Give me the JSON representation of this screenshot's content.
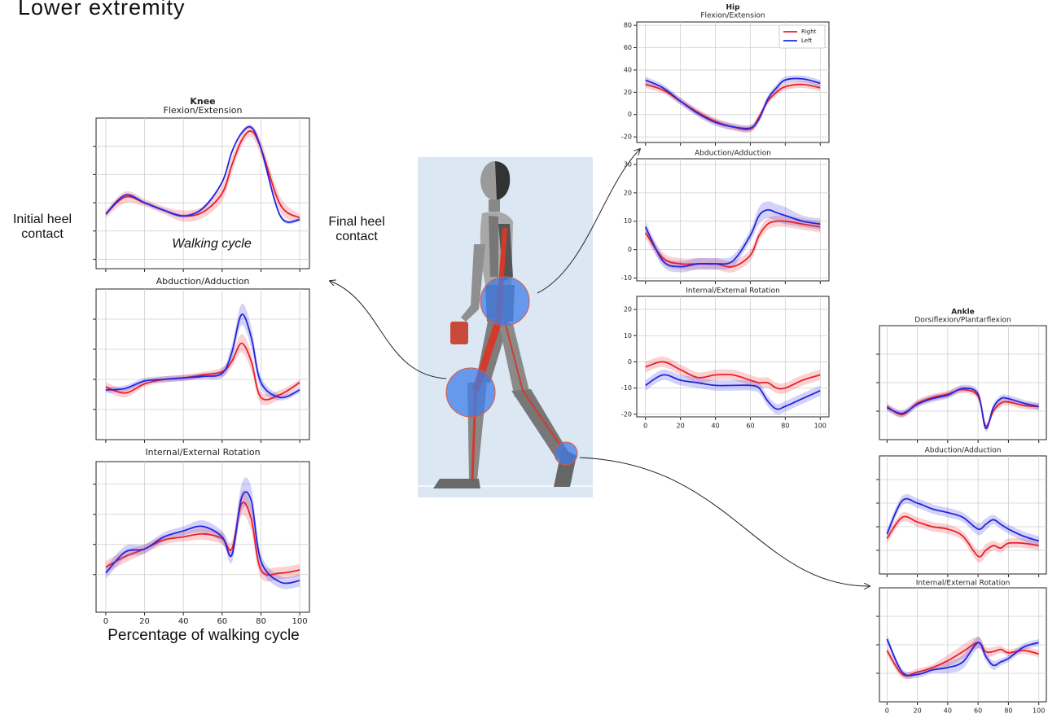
{
  "figure_title": "Lower extremity",
  "annotations": {
    "initial": "Initial heel contact",
    "cycle": "Walking cycle",
    "final": "Final heel contact",
    "xlabel": "Percentage of walking cycle"
  },
  "chart_data": [
    {
      "type": "line",
      "title": "Knee",
      "subtitle": "Flexion/Extension",
      "x": [
        0,
        10,
        20,
        30,
        40,
        50,
        60,
        65,
        70,
        75,
        80,
        90,
        100
      ],
      "xlim": [
        -5,
        105
      ],
      "xticks": [
        0,
        20,
        40,
        60,
        80,
        100
      ],
      "show_xtick_labels": false,
      "ylim": [
        0,
        80
      ],
      "yticks": [
        5,
        20,
        35,
        50,
        65
      ],
      "show_ytick_labels": false,
      "grid": true,
      "series": [
        {
          "color": "#e8202a",
          "values": [
            29,
            38,
            35,
            31,
            28,
            30,
            40,
            55,
            68,
            73,
            64,
            34,
            27
          ],
          "errors": [
            2,
            3,
            2,
            2,
            3,
            3,
            4,
            4,
            3,
            3,
            4,
            4,
            2
          ]
        },
        {
          "color": "#2424e0",
          "values": [
            29,
            39,
            35,
            31,
            28,
            32,
            46,
            62,
            72,
            75,
            64,
            28,
            26
          ],
          "errors": [
            1,
            1,
            1,
            1,
            1,
            1,
            1,
            1,
            1,
            1,
            1,
            1,
            1
          ]
        }
      ]
    },
    {
      "type": "line",
      "title": "Abduction/Adduction",
      "x": [
        0,
        10,
        20,
        30,
        40,
        50,
        60,
        65,
        70,
        75,
        80,
        90,
        100
      ],
      "xlim": [
        -5,
        105
      ],
      "xticks": [
        0,
        20,
        40,
        60,
        80,
        100
      ],
      "show_xtick_labels": false,
      "ylim": [
        0,
        100
      ],
      "yticks": [
        20,
        40,
        60,
        80
      ],
      "show_ytick_labels": false,
      "grid": true,
      "series": [
        {
          "color": "#e8202a",
          "values": [
            35,
            31,
            37,
            40,
            41,
            43,
            45,
            52,
            64,
            52,
            28,
            30,
            38
          ],
          "errors": [
            3,
            3,
            2,
            2,
            2,
            2,
            3,
            4,
            6,
            6,
            4,
            3,
            2
          ]
        },
        {
          "color": "#2424e0",
          "values": [
            33,
            34,
            39,
            40,
            41,
            42,
            44,
            58,
            83,
            68,
            38,
            28,
            33
          ],
          "errors": [
            2,
            2,
            2,
            2,
            2,
            2,
            3,
            5,
            7,
            7,
            4,
            2,
            2
          ]
        }
      ]
    },
    {
      "type": "line",
      "title": "Internal/External Rotation",
      "x": [
        0,
        10,
        20,
        30,
        40,
        50,
        60,
        65,
        70,
        75,
        80,
        90,
        100
      ],
      "xlim": [
        -5,
        105
      ],
      "xticks": [
        0,
        20,
        40,
        60,
        80,
        100
      ],
      "show_xtick_labels": true,
      "ylim": [
        0,
        100
      ],
      "yticks": [
        25,
        45,
        65,
        85
      ],
      "show_ytick_labels": false,
      "grid": true,
      "series": [
        {
          "color": "#e8202a",
          "values": [
            30,
            37,
            42,
            48,
            50,
            52,
            49,
            42,
            72,
            62,
            28,
            26,
            28
          ],
          "errors": [
            4,
            4,
            3,
            3,
            3,
            4,
            4,
            5,
            8,
            8,
            5,
            4,
            4
          ]
        },
        {
          "color": "#2424e0",
          "values": [
            26,
            40,
            42,
            50,
            54,
            57,
            50,
            38,
            76,
            74,
            34,
            20,
            21
          ],
          "errors": [
            4,
            4,
            3,
            3,
            3,
            4,
            4,
            5,
            9,
            9,
            5,
            4,
            4
          ]
        }
      ]
    },
    {
      "type": "line",
      "title": "Hip",
      "subtitle": "Flexion/Extension",
      "x": [
        0,
        10,
        20,
        30,
        40,
        50,
        60,
        65,
        70,
        75,
        80,
        90,
        100
      ],
      "xlim": [
        -5,
        105
      ],
      "xticks": [
        0,
        20,
        40,
        60,
        80,
        100
      ],
      "show_xtick_labels": false,
      "ylim": [
        -25,
        83
      ],
      "yticks": [
        -20,
        0,
        20,
        40,
        60,
        80
      ],
      "show_ytick_labels": true,
      "grid": true,
      "legend": "upper right",
      "series": [
        {
          "name": "Right",
          "color": "#e8202a",
          "values": [
            27,
            22,
            12,
            2,
            -6,
            -11,
            -13,
            -2,
            12,
            20,
            25,
            27,
            24
          ],
          "errors": [
            3,
            3,
            3,
            3,
            3,
            3,
            3,
            3,
            3,
            3,
            3,
            3,
            3
          ]
        },
        {
          "name": "Left",
          "color": "#2424e0",
          "values": [
            31,
            24,
            12,
            1,
            -7,
            -11,
            -12,
            -4,
            14,
            24,
            31,
            32,
            28
          ],
          "errors": [
            3,
            3,
            3,
            3,
            3,
            3,
            3,
            3,
            3,
            3,
            3,
            3,
            3
          ]
        }
      ]
    },
    {
      "type": "line",
      "title": "Abduction/Adduction",
      "x": [
        0,
        10,
        20,
        30,
        40,
        50,
        60,
        65,
        70,
        75,
        80,
        90,
        100
      ],
      "xlim": [
        -5,
        105
      ],
      "xticks": [
        0,
        20,
        40,
        60,
        80,
        100
      ],
      "show_xtick_labels": false,
      "ylim": [
        -11,
        32
      ],
      "yticks": [
        -10,
        0,
        10,
        20,
        30
      ],
      "show_ytick_labels": true,
      "grid": true,
      "series": [
        {
          "color": "#e8202a",
          "values": [
            6,
            -3,
            -5,
            -5,
            -5,
            -6,
            -2,
            5,
            9,
            10,
            10,
            9,
            8
          ],
          "errors": [
            2,
            2,
            2,
            2,
            2,
            2,
            2,
            2,
            2,
            2,
            2,
            2,
            2
          ]
        },
        {
          "color": "#2424e0",
          "values": [
            8,
            -4,
            -6,
            -5,
            -5,
            -4,
            5,
            12,
            14,
            13,
            12,
            10,
            9
          ],
          "errors": [
            2,
            2,
            2,
            2,
            2,
            2,
            2,
            3,
            3,
            3,
            3,
            2,
            2
          ]
        }
      ]
    },
    {
      "type": "line",
      "title": "Internal/External Rotation",
      "x": [
        0,
        10,
        20,
        30,
        40,
        50,
        60,
        65,
        70,
        75,
        80,
        90,
        100
      ],
      "xlim": [
        -5,
        105
      ],
      "xticks": [
        0,
        20,
        40,
        60,
        80,
        100
      ],
      "show_xtick_labels": true,
      "ylim": [
        -21,
        25
      ],
      "yticks": [
        -20,
        -10,
        0,
        10,
        20
      ],
      "show_ytick_labels": true,
      "grid": true,
      "series": [
        {
          "color": "#e8202a",
          "values": [
            -2,
            0,
            -3,
            -6,
            -5,
            -5,
            -7,
            -8,
            -8,
            -10,
            -10,
            -7,
            -5
          ],
          "errors": [
            2,
            2,
            2,
            2,
            2,
            2,
            2,
            2,
            2,
            2,
            2,
            2,
            2
          ]
        },
        {
          "color": "#2424e0",
          "values": [
            -9,
            -5,
            -7,
            -8,
            -9,
            -9,
            -9,
            -10,
            -15,
            -18,
            -17,
            -14,
            -11
          ],
          "errors": [
            2,
            2,
            2,
            2,
            2,
            2,
            2,
            2,
            2,
            2,
            2,
            2,
            2
          ]
        }
      ]
    },
    {
      "type": "line",
      "title": "Ankle",
      "subtitle": "Dorsiflexion/Plantarflexion",
      "x": [
        0,
        10,
        20,
        30,
        40,
        50,
        60,
        65,
        70,
        75,
        80,
        90,
        100
      ],
      "xlim": [
        -5,
        105
      ],
      "xticks": [
        0,
        20,
        40,
        60,
        80,
        100
      ],
      "show_xtick_labels": false,
      "ylim": [
        0,
        100
      ],
      "yticks": [
        25,
        50,
        75
      ],
      "show_ytick_labels": false,
      "grid": true,
      "series": [
        {
          "color": "#e8202a",
          "values": [
            29,
            22,
            32,
            37,
            40,
            44,
            38,
            12,
            25,
            32,
            33,
            30,
            29
          ],
          "errors": [
            3,
            3,
            3,
            3,
            3,
            3,
            3,
            3,
            3,
            3,
            3,
            3,
            3
          ]
        },
        {
          "color": "#2424e0",
          "values": [
            28,
            23,
            31,
            36,
            39,
            45,
            40,
            10,
            28,
            36,
            36,
            32,
            29
          ],
          "errors": [
            3,
            3,
            3,
            3,
            3,
            3,
            3,
            3,
            3,
            3,
            3,
            3,
            3
          ]
        }
      ]
    },
    {
      "type": "line",
      "title": "Abduction/Adduction",
      "x": [
        0,
        10,
        20,
        30,
        40,
        50,
        60,
        65,
        70,
        75,
        80,
        90,
        100
      ],
      "xlim": [
        -5,
        105
      ],
      "xticks": [
        0,
        20,
        40,
        60,
        80,
        100
      ],
      "show_xtick_labels": false,
      "ylim": [
        0,
        100
      ],
      "yticks": [
        20,
        40,
        60,
        80
      ],
      "show_ytick_labels": false,
      "grid": true,
      "series": [
        {
          "color": "#e8202a",
          "values": [
            30,
            48,
            44,
            40,
            38,
            32,
            15,
            20,
            24,
            22,
            26,
            26,
            24
          ],
          "errors": [
            4,
            4,
            4,
            4,
            4,
            4,
            5,
            5,
            4,
            4,
            4,
            4,
            4
          ]
        },
        {
          "color": "#2424e0",
          "values": [
            34,
            62,
            60,
            55,
            52,
            48,
            38,
            42,
            46,
            42,
            38,
            32,
            28
          ],
          "errors": [
            4,
            4,
            4,
            4,
            4,
            4,
            5,
            5,
            4,
            4,
            4,
            4,
            4
          ]
        }
      ]
    },
    {
      "type": "line",
      "title": "Internal/External Rotation",
      "x": [
        0,
        10,
        20,
        30,
        40,
        50,
        60,
        65,
        70,
        75,
        80,
        90,
        100
      ],
      "xlim": [
        -5,
        105
      ],
      "xticks": [
        0,
        20,
        40,
        60,
        80,
        100
      ],
      "show_xtick_labels": true,
      "ylim": [
        0,
        100
      ],
      "yticks": [
        25,
        50,
        75
      ],
      "show_ytick_labels": false,
      "grid": true,
      "series": [
        {
          "color": "#e8202a",
          "values": [
            45,
            24,
            26,
            30,
            36,
            44,
            52,
            44,
            44,
            46,
            43,
            45,
            42
          ],
          "errors": [
            4,
            3,
            3,
            3,
            5,
            6,
            5,
            4,
            4,
            3,
            3,
            3,
            3
          ]
        },
        {
          "color": "#2424e0",
          "values": [
            55,
            26,
            24,
            28,
            30,
            35,
            52,
            40,
            32,
            35,
            38,
            48,
            52
          ],
          "errors": [
            4,
            3,
            3,
            3,
            5,
            6,
            5,
            4,
            4,
            3,
            3,
            3,
            3
          ]
        }
      ]
    }
  ]
}
